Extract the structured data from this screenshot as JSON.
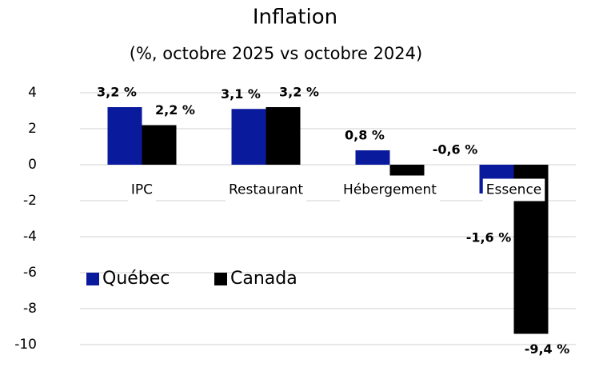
{
  "chart_data": {
    "type": "bar",
    "title": "Inflation",
    "subtitle": "(%, octobre 2025 vs octobre 2024)",
    "categories": [
      "IPC",
      "Restaurant",
      "Hébergement",
      "Essence"
    ],
    "series": [
      {
        "name": "Québec",
        "color": "#0a1a9c",
        "values": [
          3.2,
          3.1,
          0.8,
          -1.6
        ],
        "value_labels": [
          "3,2 %",
          "3,1 %",
          "0,8 %",
          "-1,6 %"
        ]
      },
      {
        "name": "Canada",
        "color": "#000000",
        "values": [
          2.2,
          3.2,
          -0.6,
          -9.4
        ],
        "value_labels": [
          "2,2 %",
          "3,2 %",
          "-0,6 %",
          "-9,4 %"
        ]
      }
    ],
    "ylim": [
      -10,
      4
    ],
    "yticks": [
      -10,
      -8,
      -6,
      -4,
      -2,
      0,
      2,
      4
    ],
    "grid": true,
    "legend": "left"
  }
}
